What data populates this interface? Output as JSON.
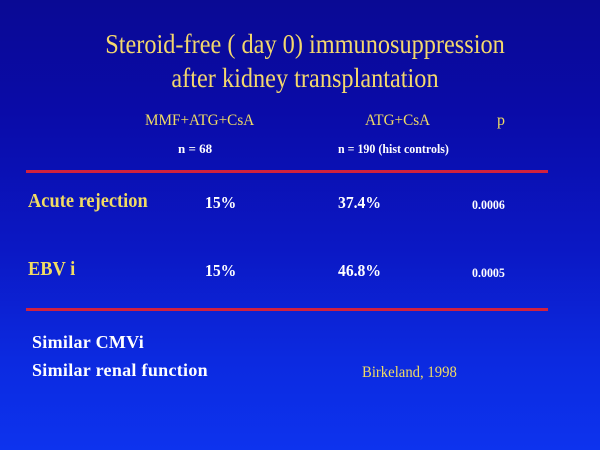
{
  "slide": {
    "title_line1": "Steroid-free ( day 0) immunosuppression",
    "title_line2": "after kidney transplantation",
    "columns": {
      "group1": "MMF+ATG+CsA",
      "group2": "ATG+CsA",
      "p": "p",
      "group1_n": "n = 68",
      "group2_n": "n = 190 (hist controls)"
    },
    "rows": [
      {
        "label": "Acute rejection",
        "group1": "15%",
        "group2": "37.4%",
        "p": "0.0006"
      },
      {
        "label": "EBV i",
        "group1": "15%",
        "group2": "46.8%",
        "p": "0.0005"
      }
    ],
    "notes": [
      "Similar CMVi",
      "Similar renal function"
    ],
    "citation": "Birkeland, 1998",
    "colors": {
      "background_top": "#0a0a94",
      "background_bottom": "#0d33ee",
      "title": "#f4d86c",
      "rule": "#d2213e"
    }
  }
}
